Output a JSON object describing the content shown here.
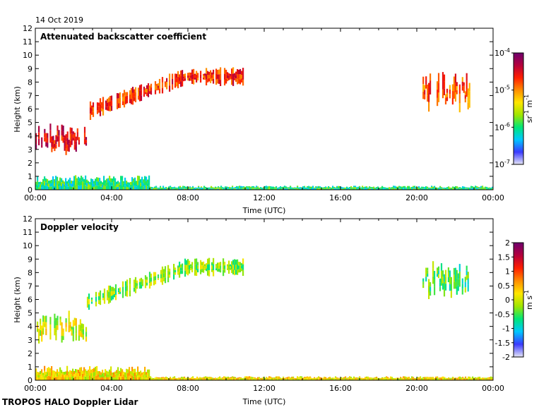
{
  "date_label": "14 Oct 2019",
  "footer": "TROPOS HALO Doppler Lidar",
  "chart_data": [
    {
      "type": "heatmap",
      "title": "Attenuated backscatter coefficient",
      "xlabel": "Time (UTC)",
      "ylabel": "Height (km)",
      "x_ticks": [
        "00:00",
        "04:00",
        "08:00",
        "12:00",
        "16:00",
        "20:00",
        "00:00"
      ],
      "xlim": [
        0,
        24
      ],
      "ylim": [
        0,
        12
      ],
      "y_ticks": [
        "0",
        "1",
        "2",
        "3",
        "4",
        "5",
        "6",
        "7",
        "8",
        "9",
        "10",
        "11",
        "12"
      ],
      "grid": false,
      "colorbar": {
        "scale": "log",
        "range": [
          1e-07,
          0.0001
        ],
        "ticks": [
          {
            "base": "10",
            "exp": "-7",
            "value": 1e-07
          },
          {
            "base": "10",
            "exp": "-6",
            "value": 1e-06
          },
          {
            "base": "10",
            "exp": "-5",
            "value": 1e-05
          },
          {
            "base": "10",
            "exp": "-4",
            "value": 0.0001
          }
        ],
        "unit": {
          "a": "sr",
          "a_exp": "-1",
          "b": "m",
          "b_exp": "-1"
        },
        "colors": [
          "#e6e6f5",
          "#3a3aff",
          "#00c8ff",
          "#00e678",
          "#a0e600",
          "#ffe600",
          "#ff8c00",
          "#ff1e00",
          "#b4003c",
          "#6e006e"
        ]
      },
      "features": [
        {
          "t": [
            0.0,
            2.7
          ],
          "h": [
            2.9,
            4.7
          ],
          "value": 3e-05,
          "desc": "boundary layer aerosol"
        },
        {
          "t": [
            2.7,
            11.0
          ],
          "h": [
            5.0,
            9.0
          ],
          "value": 2e-05,
          "desc": "elevated cloud layer"
        },
        {
          "t": [
            20.3,
            22.8
          ],
          "h": [
            6.2,
            8.7
          ],
          "value": 1.5e-05,
          "desc": "late cloud"
        },
        {
          "t": [
            0.0,
            24.0
          ],
          "h": [
            0.0,
            1.2
          ],
          "value": 1e-06,
          "desc": "near-surface layer"
        }
      ]
    },
    {
      "type": "heatmap",
      "title": "Doppler velocity",
      "xlabel": "Time (UTC)",
      "ylabel": "Height (km)",
      "x_ticks": [
        "00:00",
        "04:00",
        "08:00",
        "12:00",
        "16:00",
        "20:00",
        "00:00"
      ],
      "xlim": [
        0,
        24
      ],
      "ylim": [
        0,
        12
      ],
      "y_ticks": [
        "0",
        "1",
        "2",
        "3",
        "4",
        "5",
        "6",
        "7",
        "8",
        "9",
        "10",
        "11",
        "12"
      ],
      "grid": false,
      "colorbar": {
        "scale": "linear",
        "range": [
          -2,
          2
        ],
        "ticks": [
          {
            "label": "-2",
            "value": -2
          },
          {
            "label": "-1.5",
            "value": -1.5
          },
          {
            "label": "-1",
            "value": -1
          },
          {
            "label": "-0.5",
            "value": -0.5
          },
          {
            "label": "0",
            "value": 0
          },
          {
            "label": "0.5",
            "value": 0.5
          },
          {
            "label": "1",
            "value": 1
          },
          {
            "label": "1.5",
            "value": 1.5
          },
          {
            "label": "2",
            "value": 2
          }
        ],
        "unit": {
          "a": "m",
          "a_exp": "",
          "b": "s",
          "b_exp": "-1"
        },
        "colors": [
          "#e6e6f5",
          "#3a3aff",
          "#00c8ff",
          "#00e678",
          "#a0e600",
          "#ffe600",
          "#ff8c00",
          "#ff1e00",
          "#b4003c",
          "#6e006e"
        ]
      },
      "features": [
        {
          "t": [
            0.0,
            2.7
          ],
          "h": [
            2.9,
            4.8
          ],
          "value": 0.0,
          "desc": "boundary layer aerosol"
        },
        {
          "t": [
            2.7,
            11.0
          ],
          "h": [
            5.0,
            9.0
          ],
          "value": -0.3,
          "desc": "elevated cloud layer"
        },
        {
          "t": [
            20.3,
            22.8
          ],
          "h": [
            6.3,
            8.5
          ],
          "value": -0.5,
          "desc": "late cloud"
        },
        {
          "t": [
            0.0,
            24.0
          ],
          "h": [
            0.0,
            1.2
          ],
          "value": 0.2,
          "desc": "near-surface layer"
        }
      ]
    }
  ]
}
